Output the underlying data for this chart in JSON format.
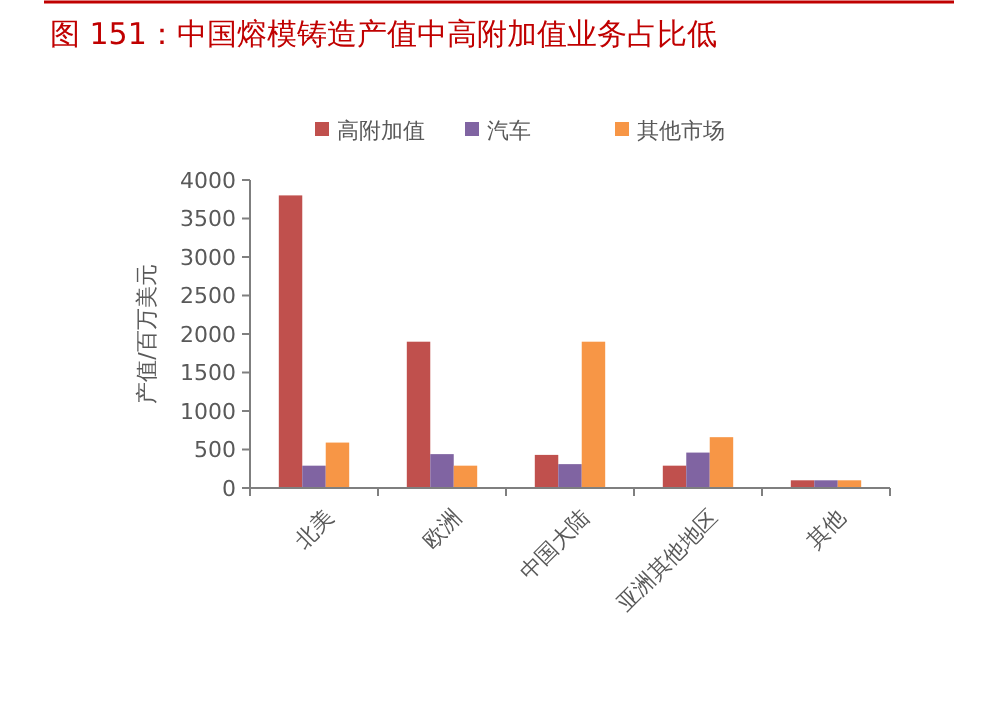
{
  "chart_data": {
    "type": "bar",
    "title": "图 151：中国熔模铸造产值中高附加值业务占比低",
    "ylabel": "产值/百万美元",
    "categories": [
      "北美",
      "欧洲",
      "中国大陆",
      "亚洲其他地区",
      "其他"
    ],
    "series": [
      {
        "name": "高附加值",
        "color": "#c0504d",
        "values": [
          3800,
          1900,
          430,
          290,
          100
        ]
      },
      {
        "name": "汽车",
        "color": "#8064a2",
        "values": [
          290,
          440,
          310,
          460,
          100
        ]
      },
      {
        "name": "其他市场",
        "color": "#f79646",
        "values": [
          590,
          290,
          1900,
          660,
          100
        ]
      }
    ],
    "ylim": [
      0,
      4000
    ],
    "yticks": [
      0,
      500,
      1000,
      1500,
      2000,
      2500,
      3000,
      3500,
      4000
    ],
    "legend": "top",
    "grid": false
  }
}
